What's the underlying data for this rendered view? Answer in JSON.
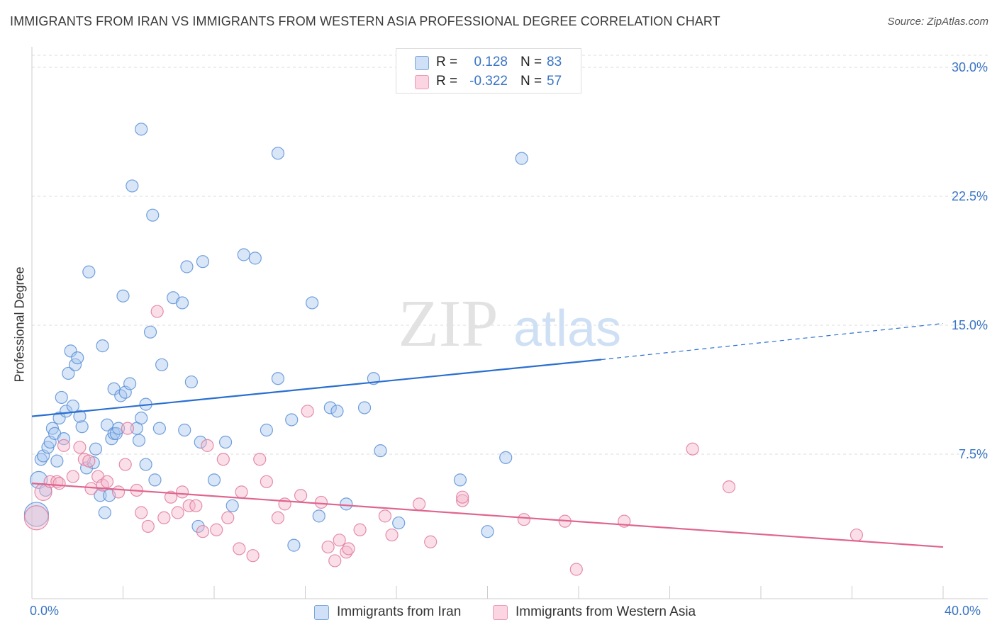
{
  "title": "IMMIGRANTS FROM IRAN VS IMMIGRANTS FROM WESTERN ASIA PROFESSIONAL DEGREE CORRELATION CHART",
  "source": "Source: ZipAtlas.com",
  "watermark": {
    "zip": "ZIP",
    "atlas": "atlas"
  },
  "legend": {
    "rows": [
      {
        "r_label": "R =",
        "r_value": "0.128",
        "n_label": "N =",
        "n_value": "83",
        "color": "#a8c8f0"
      },
      {
        "r_label": "R =",
        "r_value": "-0.322",
        "n_label": "N =",
        "n_value": "57",
        "color": "#f5b8cb"
      }
    ]
  },
  "bottom_legend": [
    {
      "label": "Immigrants from Iran",
      "color": "#a8c8f0"
    },
    {
      "label": "Immigrants from Western Asia",
      "color": "#f5b8cb"
    }
  ],
  "colors": {
    "iran_fill": "#a8c8f0",
    "iran_stroke": "#5b8fd6",
    "iran_line": "#2a6fd0",
    "wasia_fill": "#f5b8cb",
    "wasia_stroke": "#e07a9e",
    "wasia_line": "#e0648f",
    "tick_text": "#3a75c4",
    "grid": "#dcdcdc"
  },
  "chart_data": {
    "type": "scatter",
    "title": "IMMIGRANTS FROM IRAN VS IMMIGRANTS FROM WESTERN ASIA PROFESSIONAL DEGREE CORRELATION CHART",
    "xlabel": "",
    "ylabel": "Professional Degree",
    "xlim": [
      0,
      40
    ],
    "ylim": [
      0,
      30.7
    ],
    "x_tick_labels": [
      "0.0%",
      "40.0%"
    ],
    "y_ticks": [
      7.5,
      15.0,
      22.5,
      30.0
    ],
    "y_tick_labels": [
      "7.5%",
      "15.0%",
      "22.5%",
      "30.0%"
    ],
    "grid": "horizontal dashed",
    "legend_position": "top-center",
    "series": [
      {
        "name": "Immigrants from Iran",
        "r": 0.128,
        "n": 83,
        "trend": {
          "x0": 0,
          "y0": 9.7,
          "x1": 25,
          "y1": 13.0,
          "dashed_to": 40,
          "y_dashed_end": 15.1
        },
        "points": [
          [
            0.3,
            6.0,
            2
          ],
          [
            0.2,
            4.0,
            3
          ],
          [
            0.4,
            7.2,
            1
          ],
          [
            0.5,
            7.4,
            1
          ],
          [
            0.6,
            5.4,
            1
          ],
          [
            0.7,
            7.9,
            1
          ],
          [
            0.8,
            8.2,
            1
          ],
          [
            0.9,
            9.0,
            1
          ],
          [
            1.0,
            8.7,
            1
          ],
          [
            1.1,
            7.1,
            1
          ],
          [
            1.2,
            9.6,
            1
          ],
          [
            1.3,
            10.8,
            1
          ],
          [
            1.4,
            8.4,
            1
          ],
          [
            1.5,
            10.0,
            1
          ],
          [
            1.6,
            12.2,
            1
          ],
          [
            1.7,
            13.5,
            1
          ],
          [
            1.8,
            10.3,
            1
          ],
          [
            1.9,
            12.7,
            1
          ],
          [
            2.2,
            9.1,
            1
          ],
          [
            2.1,
            9.7,
            1
          ],
          [
            2.0,
            13.1,
            1
          ],
          [
            2.5,
            18.1,
            1
          ],
          [
            2.4,
            6.7,
            1
          ],
          [
            2.7,
            7.0,
            1
          ],
          [
            2.8,
            7.8,
            1
          ],
          [
            3.0,
            5.1,
            1
          ],
          [
            3.1,
            13.8,
            1
          ],
          [
            3.2,
            4.1,
            1
          ],
          [
            3.3,
            9.2,
            1
          ],
          [
            3.4,
            5.1,
            1
          ],
          [
            3.5,
            8.4,
            1
          ],
          [
            3.6,
            8.7,
            1
          ],
          [
            3.6,
            11.3,
            1
          ],
          [
            3.7,
            8.7,
            1
          ],
          [
            3.8,
            9.0,
            1
          ],
          [
            3.9,
            10.9,
            1
          ],
          [
            4.1,
            11.1,
            1
          ],
          [
            4.0,
            16.7,
            1
          ],
          [
            4.3,
            11.6,
            1
          ],
          [
            4.4,
            23.1,
            1
          ],
          [
            4.6,
            9.0,
            1
          ],
          [
            4.7,
            8.3,
            1
          ],
          [
            4.8,
            9.6,
            1
          ],
          [
            4.8,
            26.4,
            1
          ],
          [
            5.0,
            10.4,
            1
          ],
          [
            5.0,
            6.9,
            1
          ],
          [
            5.2,
            14.6,
            1
          ],
          [
            5.3,
            21.4,
            1
          ],
          [
            5.4,
            6.0,
            1
          ],
          [
            5.6,
            9.0,
            1
          ],
          [
            5.7,
            12.7,
            1
          ],
          [
            6.2,
            16.6,
            1
          ],
          [
            6.6,
            16.3,
            1
          ],
          [
            6.7,
            8.9,
            1
          ],
          [
            6.8,
            18.4,
            1
          ],
          [
            7.0,
            11.7,
            1
          ],
          [
            7.4,
            8.2,
            1
          ],
          [
            7.5,
            18.7,
            1
          ],
          [
            7.3,
            3.3,
            1
          ],
          [
            8.0,
            6.0,
            1
          ],
          [
            8.5,
            8.2,
            1
          ],
          [
            8.8,
            4.5,
            1
          ],
          [
            9.3,
            19.1,
            1
          ],
          [
            9.8,
            18.9,
            1
          ],
          [
            10.3,
            8.9,
            1
          ],
          [
            10.8,
            11.9,
            1
          ],
          [
            10.8,
            25.0,
            1
          ],
          [
            11.4,
            9.5,
            1
          ],
          [
            11.5,
            2.2,
            1
          ],
          [
            12.3,
            16.3,
            1
          ],
          [
            12.6,
            3.9,
            1
          ],
          [
            13.1,
            10.2,
            1
          ],
          [
            13.4,
            10.0,
            1
          ],
          [
            13.8,
            4.6,
            1
          ],
          [
            14.6,
            10.2,
            1
          ],
          [
            15.0,
            11.9,
            1
          ],
          [
            15.3,
            7.7,
            1
          ],
          [
            16.1,
            3.5,
            1
          ],
          [
            18.8,
            6.0,
            1
          ],
          [
            20.0,
            3.0,
            1
          ],
          [
            20.8,
            7.3,
            1
          ],
          [
            21.5,
            24.7,
            1
          ]
        ]
      },
      {
        "name": "Immigrants from Western Asia",
        "r": -0.322,
        "n": 57,
        "trend": {
          "x0": 0,
          "y0": 5.8,
          "x1": 40,
          "y1": 2.1
        },
        "points": [
          [
            0.2,
            3.8,
            3
          ],
          [
            0.5,
            5.3,
            2
          ],
          [
            0.8,
            5.9,
            1
          ],
          [
            1.1,
            5.9,
            1
          ],
          [
            1.2,
            5.8,
            1
          ],
          [
            1.4,
            8.0,
            1
          ],
          [
            1.8,
            6.2,
            1
          ],
          [
            2.1,
            7.9,
            1
          ],
          [
            2.3,
            7.2,
            1
          ],
          [
            2.5,
            7.1,
            1
          ],
          [
            2.6,
            5.5,
            1
          ],
          [
            2.9,
            6.2,
            1
          ],
          [
            3.1,
            5.7,
            1
          ],
          [
            3.3,
            5.9,
            1
          ],
          [
            3.8,
            5.3,
            1
          ],
          [
            4.1,
            6.9,
            1
          ],
          [
            4.2,
            9.0,
            1
          ],
          [
            4.6,
            5.4,
            1
          ],
          [
            4.8,
            4.1,
            1
          ],
          [
            5.1,
            3.3,
            1
          ],
          [
            5.5,
            15.8,
            1
          ],
          [
            5.8,
            3.8,
            1
          ],
          [
            6.1,
            5.0,
            1
          ],
          [
            6.4,
            4.1,
            1
          ],
          [
            6.6,
            5.3,
            1
          ],
          [
            6.9,
            4.5,
            1
          ],
          [
            7.2,
            4.5,
            1
          ],
          [
            7.5,
            3.0,
            1
          ],
          [
            7.7,
            8.0,
            1
          ],
          [
            8.1,
            3.1,
            1
          ],
          [
            8.4,
            7.2,
            1
          ],
          [
            8.6,
            3.8,
            1
          ],
          [
            9.1,
            2.0,
            1
          ],
          [
            9.2,
            5.3,
            1
          ],
          [
            9.7,
            1.6,
            1
          ],
          [
            10.0,
            7.2,
            1
          ],
          [
            10.3,
            5.9,
            1
          ],
          [
            10.8,
            3.8,
            1
          ],
          [
            11.1,
            4.6,
            1
          ],
          [
            11.8,
            5.1,
            1
          ],
          [
            12.1,
            10.0,
            1
          ],
          [
            12.7,
            4.7,
            1
          ],
          [
            13.0,
            2.1,
            1
          ],
          [
            13.3,
            1.3,
            1
          ],
          [
            13.5,
            2.5,
            1
          ],
          [
            13.8,
            1.8,
            1
          ],
          [
            13.9,
            2.0,
            1
          ],
          [
            14.4,
            3.1,
            1
          ],
          [
            15.5,
            3.9,
            1
          ],
          [
            15.8,
            2.8,
            1
          ],
          [
            17.0,
            4.6,
            1
          ],
          [
            17.5,
            2.4,
            1
          ],
          [
            18.9,
            4.8,
            1
          ],
          [
            18.9,
            5.0,
            1
          ],
          [
            21.6,
            3.7,
            1
          ],
          [
            23.4,
            3.6,
            1
          ],
          [
            23.9,
            0.8,
            1
          ],
          [
            26.0,
            3.6,
            1
          ],
          [
            29.0,
            7.8,
            1
          ],
          [
            30.6,
            5.6,
            1
          ],
          [
            36.2,
            2.8,
            1
          ]
        ]
      }
    ]
  }
}
